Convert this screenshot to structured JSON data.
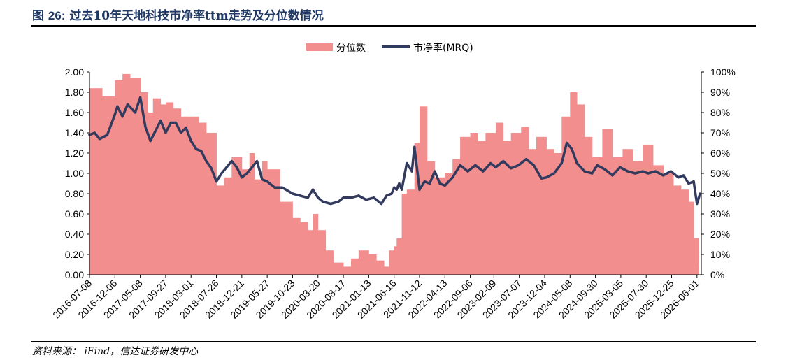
{
  "figure": {
    "title_prefix": "图",
    "title_number": "26:",
    "title_text": "过去10年天地科技市净率ttm走势及分位数情况",
    "source": "资料来源： iFind，信达证券研发中心"
  },
  "colors": {
    "percentile_bars": "#f28e8e",
    "pb_line": "#323a5e",
    "title": "#1f3864"
  },
  "chart_data": {
    "type": "area",
    "title": "",
    "legend": {
      "position": "top-center",
      "entries": [
        "分位数",
        "市净率(MRQ)"
      ]
    },
    "grid": false,
    "left_axis": {
      "ylim": [
        0,
        2.0
      ],
      "ticks": [
        "0.00",
        "0.20",
        "0.40",
        "0.60",
        "0.80",
        "1.00",
        "1.20",
        "1.40",
        "1.60",
        "1.80",
        "2.00"
      ]
    },
    "right_axis": {
      "ylim": [
        0,
        100
      ],
      "ticks": [
        "0%",
        "10%",
        "20%",
        "30%",
        "40%",
        "50%",
        "60%",
        "70%",
        "80%",
        "90%",
        "100%"
      ]
    },
    "x_tick_labels": [
      "2016-07-08",
      "2016-12-06",
      "2017-05-08",
      "2017-09-27",
      "2018-03-01",
      "2018-07-26",
      "2018-12-21",
      "2019-05-27",
      "2019-10-23",
      "2020-03-20",
      "2020-08-17",
      "2021-01-13",
      "2021-06-16",
      "2021-11-12",
      "2022-04-13",
      "2022-09-06",
      "2023-02-09",
      "2023-07-07",
      "2023-12-04",
      "2024-05-08",
      "2024-09-30",
      "2025-03-05",
      "2025-07-30",
      "2025-12-25",
      "2026-06-01"
    ],
    "x_tick_positions": [
      0,
      1,
      2,
      3,
      4,
      5,
      6,
      7,
      8,
      9,
      10,
      11,
      12,
      13,
      14,
      15,
      15.93,
      16.93,
      17.93,
      18.93,
      19.93,
      20.93,
      21.93,
      22.93,
      23.93
    ],
    "x_range": [
      0,
      24.1
    ],
    "series": [
      {
        "name": "分位数",
        "axis": "right",
        "kind": "bar",
        "x": [
          0,
          0.5,
          1,
          1.3,
          1.6,
          2,
          2.3,
          2.5,
          2.8,
          3,
          3.3,
          3.6,
          4,
          4.3,
          4.6,
          5,
          5.3,
          5.6,
          6,
          6.3,
          6.5,
          6.8,
          7,
          7.5,
          8,
          8.3,
          8.6,
          8.8,
          9,
          9.3,
          9.6,
          10,
          10.3,
          10.6,
          11,
          11.3,
          11.6,
          11.8,
          12,
          12.1,
          12.3,
          12.5,
          12.8,
          13,
          13.3,
          13.6,
          14,
          14.3,
          14.6,
          15,
          15.3,
          15.6,
          16,
          16.3,
          16.6,
          17,
          17.3,
          17.6,
          18,
          18.3,
          18.6,
          18.93,
          19.2,
          19.5,
          19.8,
          20.2,
          20.6,
          21,
          21.4,
          21.8,
          22.2,
          22.6,
          23,
          23.3,
          23.6,
          23.8,
          24
        ],
        "values": [
          92,
          88,
          96,
          99,
          97,
          90,
          80,
          87,
          84,
          85,
          82,
          78,
          78,
          75,
          70,
          44,
          48,
          58,
          52,
          60,
          47,
          56,
          52,
          36,
          28,
          26,
          22,
          30,
          22,
          12,
          6,
          4,
          8,
          12,
          10,
          7,
          4,
          12,
          14,
          18,
          40,
          42,
          65,
          83,
          56,
          48,
          50,
          57,
          68,
          70,
          66,
          70,
          75,
          66,
          70,
          73,
          62,
          68,
          62,
          60,
          78,
          90,
          84,
          68,
          58,
          72,
          58,
          62,
          56,
          64,
          54,
          50,
          44,
          42,
          36,
          18,
          4
        ]
      },
      {
        "name": "市净率(MRQ)",
        "axis": "left",
        "kind": "line",
        "x": [
          0,
          0.2,
          0.4,
          0.7,
          1,
          1.1,
          1.3,
          1.5,
          1.8,
          2,
          2.2,
          2.4,
          2.6,
          2.8,
          3,
          3.2,
          3.4,
          3.6,
          3.8,
          4,
          4.2,
          4.4,
          4.6,
          4.8,
          5,
          5.2,
          5.4,
          5.6,
          5.8,
          6,
          6.2,
          6.4,
          6.6,
          6.8,
          7,
          7.3,
          7.6,
          8,
          8.3,
          8.6,
          8.8,
          9,
          9.2,
          9.5,
          9.8,
          10,
          10.3,
          10.6,
          10.9,
          11.2,
          11.5,
          11.7,
          11.9,
          12,
          12.1,
          12.2,
          12.3,
          12.5,
          12.7,
          12.8,
          13,
          13.2,
          13.4,
          13.6,
          13.8,
          14,
          14.3,
          14.6,
          14.9,
          15.2,
          15.5,
          15.8,
          16,
          16.3,
          16.6,
          16.9,
          17.2,
          17.5,
          17.8,
          18,
          18.3,
          18.6,
          18.8,
          19,
          19.2,
          19.5,
          19.8,
          20,
          20.3,
          20.6,
          20.9,
          21.2,
          21.5,
          21.8,
          22,
          22.3,
          22.6,
          22.9,
          23.2,
          23.4,
          23.6,
          23.8,
          23.93,
          24.05
        ],
        "values": [
          1.38,
          1.4,
          1.34,
          1.38,
          1.58,
          1.66,
          1.56,
          1.68,
          1.6,
          1.75,
          1.46,
          1.32,
          1.42,
          1.52,
          1.4,
          1.5,
          1.5,
          1.4,
          1.45,
          1.32,
          1.24,
          1.22,
          1.12,
          1.05,
          0.92,
          1.0,
          1.06,
          1.12,
          1.06,
          0.96,
          1.0,
          1.06,
          1.12,
          0.94,
          0.92,
          0.86,
          0.86,
          0.8,
          0.78,
          0.76,
          0.84,
          0.76,
          0.72,
          0.7,
          0.72,
          0.76,
          0.76,
          0.78,
          0.74,
          0.76,
          0.7,
          0.78,
          0.8,
          0.86,
          0.84,
          0.9,
          0.84,
          1.1,
          1.02,
          1.26,
          0.84,
          0.92,
          0.9,
          1.02,
          0.9,
          0.88,
          0.96,
          1.08,
          1.02,
          1.08,
          1.02,
          1.1,
          1.06,
          1.12,
          1.05,
          1.08,
          1.14,
          1.08,
          0.95,
          0.96,
          1.0,
          1.1,
          1.3,
          1.24,
          1.1,
          1.02,
          1.0,
          1.08,
          1.04,
          0.98,
          1.06,
          1.02,
          1.0,
          1.02,
          1.0,
          1.02,
          0.98,
          1.02,
          0.96,
          0.98,
          0.9,
          0.92,
          0.7,
          0.8
        ]
      }
    ]
  }
}
